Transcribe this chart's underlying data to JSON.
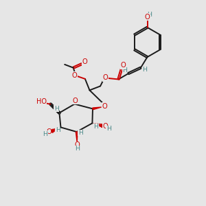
{
  "background_color": "#e6e6e6",
  "bond_color": "#1a1a1a",
  "oxygen_color": "#cc0000",
  "hydrogen_color": "#4a8888",
  "figsize": [
    3.0,
    3.0
  ],
  "dpi": 100,
  "xlim": [
    0,
    10
  ],
  "ylim": [
    0,
    10
  ]
}
